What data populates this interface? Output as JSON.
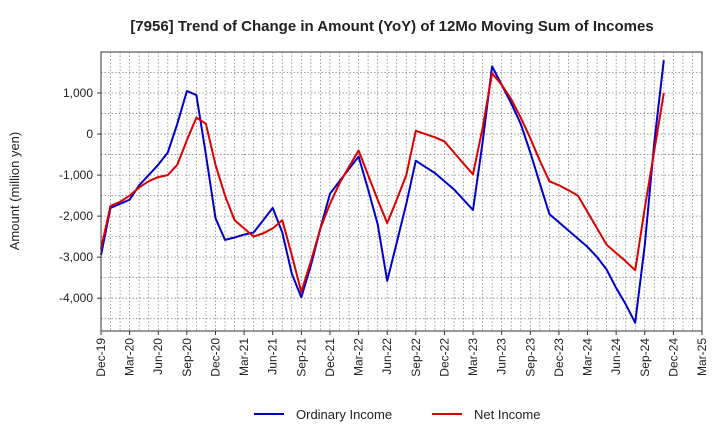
{
  "chart_data": {
    "type": "line",
    "title": "[7956]  Trend of Change in Amount (YoY) of 12Mo Moving Sum of Incomes",
    "xlabel": "",
    "ylabel": "Amount (million yen)",
    "ylim": [
      -4800,
      2000
    ],
    "yticks": [
      1000,
      0,
      -1000,
      -2000,
      -3000,
      -4000
    ],
    "ytick_labels": [
      "1,000",
      "0",
      "-1,000",
      "-2,000",
      "-3,000",
      "-4,000"
    ],
    "xticks": [
      "Dec-19",
      "Mar-20",
      "Jun-20",
      "Sep-20",
      "Dec-20",
      "Mar-21",
      "Jun-21",
      "Sep-21",
      "Dec-21",
      "Mar-22",
      "Jun-22",
      "Sep-22",
      "Dec-22",
      "Mar-23",
      "Jun-23",
      "Sep-23",
      "Dec-23",
      "Mar-24",
      "Jun-24",
      "Sep-24",
      "Dec-24",
      "Mar-25"
    ],
    "grid": true,
    "legend_position": "bottom",
    "series": [
      {
        "name": "Ordinary Income",
        "color": "#0000cc",
        "values": [
          -2950,
          -1800,
          -1700,
          -1600,
          -1250,
          -1000,
          -750,
          -450,
          250,
          1050,
          950,
          -500,
          -2050,
          -2580,
          -2520,
          -2450,
          -2400,
          -2100,
          -1800,
          -2400,
          -3400,
          -3980,
          -3200,
          -2300,
          -1450,
          -1150,
          -850,
          -550,
          -1350,
          -2200,
          -3580,
          -2650,
          -1700,
          -650,
          -800,
          -950,
          -1150,
          -1350,
          -1600,
          -1850,
          -200,
          1650,
          1200,
          750,
          250,
          -450,
          -1200,
          -1950,
          -2150,
          -2350,
          -2550,
          -2750,
          -3000,
          -3300,
          -3750,
          -4150,
          -4600,
          -2700,
          -200,
          1800
        ]
      },
      {
        "name": "Net Income",
        "color": "#dd0000",
        "values": [
          -2800,
          -1750,
          -1650,
          -1500,
          -1300,
          -1150,
          -1050,
          -1000,
          -750,
          -150,
          400,
          250,
          -750,
          -1500,
          -2100,
          -2300,
          -2500,
          -2420,
          -2300,
          -2100,
          -2950,
          -3850,
          -3100,
          -2300,
          -1700,
          -1200,
          -800,
          -400,
          -1000,
          -1600,
          -2170,
          -1600,
          -1000,
          80,
          0,
          -80,
          -180,
          -450,
          -720,
          -980,
          150,
          1480,
          1200,
          850,
          400,
          -100,
          -650,
          -1150,
          -1250,
          -1370,
          -1500,
          -1900,
          -2300,
          -2700,
          -2900,
          -3100,
          -3320,
          -1800,
          -400,
          1000
        ]
      }
    ]
  }
}
